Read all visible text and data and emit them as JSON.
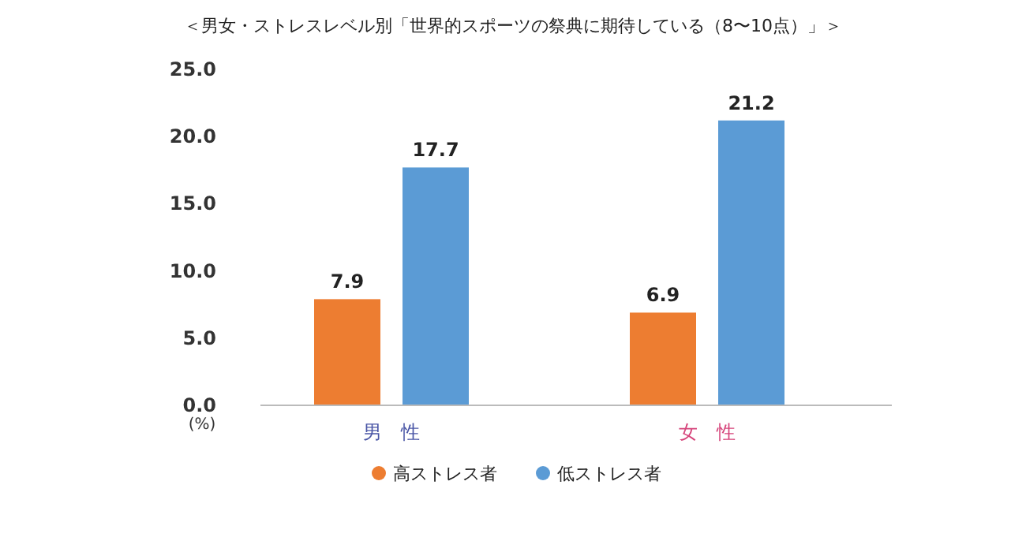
{
  "chart_data": {
    "type": "bar",
    "title": "＜男女・ストレスレベル別「世界的スポーツの祭典に期待している（8〜10点）」＞",
    "ylabel": "(%)",
    "categories": [
      "男　性",
      "女　性"
    ],
    "series": [
      {
        "name": "高ストレス者",
        "color": "#ed7d31",
        "values": [
          7.9,
          6.9
        ]
      },
      {
        "name": "低ストレス者",
        "color": "#5b9bd5",
        "values": [
          17.7,
          21.2
        ]
      }
    ],
    "ylim": [
      0,
      25
    ],
    "yticks": [
      {
        "value": 0,
        "label": "0.0"
      },
      {
        "value": 5,
        "label": "5.0"
      },
      {
        "value": 10,
        "label": "10.0"
      },
      {
        "value": 15,
        "label": "15.0"
      },
      {
        "value": 20,
        "label": "20.0"
      },
      {
        "value": 25,
        "label": "25.0"
      }
    ],
    "data_labels": true,
    "legend": "bottom",
    "grid": false
  }
}
